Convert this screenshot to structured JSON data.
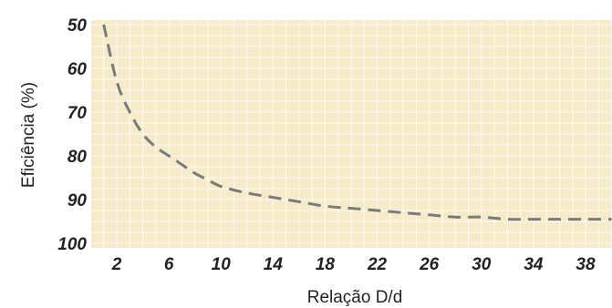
{
  "chart_data": {
    "type": "line",
    "title": "",
    "xlabel": "Relação D/d",
    "ylabel": "Eficiência (%)",
    "xlim": [
      0,
      40
    ],
    "ylim": [
      50,
      100
    ],
    "y_inverted": true,
    "x_ticks": [
      "2",
      "6",
      "10",
      "14",
      "18",
      "22",
      "26",
      "30",
      "34",
      "38"
    ],
    "y_ticks": [
      "50",
      "60",
      "70",
      "80",
      "90",
      "100"
    ],
    "grid": true,
    "series": [
      {
        "line_style": "dashed",
        "color": "#7a7a7a",
        "x": [
          1,
          2,
          3,
          4,
          5,
          6,
          7,
          8,
          9,
          10,
          12,
          14,
          16,
          18,
          20,
          22,
          24,
          26,
          28,
          30,
          32,
          34,
          36,
          38,
          40
        ],
        "y": [
          50,
          63,
          70,
          75,
          78,
          80,
          82,
          84,
          85.5,
          87,
          88.5,
          89.5,
          90.5,
          91.5,
          92,
          92.5,
          93,
          93.5,
          94,
          94,
          94.5,
          94.5,
          94.5,
          94.5,
          94.5
        ]
      }
    ]
  },
  "colors": {
    "plot_background": "#f5ebc9",
    "grid": "#ffffff",
    "line": "#7a7a7a"
  }
}
